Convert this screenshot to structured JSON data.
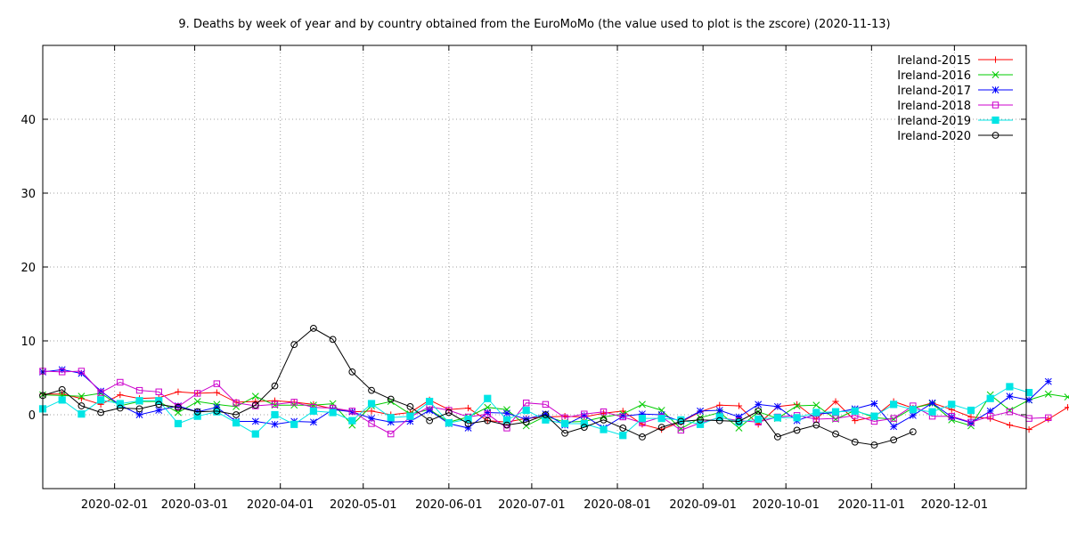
{
  "chart_data": {
    "type": "line",
    "title": "9. Deaths by week of year and by country obtained from the EuroMoMo (the value used to plot is the zscore) (2020-11-13)",
    "xlabel": "",
    "ylabel": "",
    "x_range": [
      "2020-01-06",
      "2020-12-27"
    ],
    "ylim": [
      -10,
      50
    ],
    "grid": true,
    "legend_position": "top-right",
    "x_ticks": [
      "2020-02-01",
      "2020-03-01",
      "2020-04-01",
      "2020-05-01",
      "2020-06-01",
      "2020-07-01",
      "2020-08-01",
      "2020-09-01",
      "2020-10-01",
      "2020-11-01",
      "2020-12-01"
    ],
    "y_ticks": [
      0,
      10,
      20,
      30,
      40
    ],
    "x_start": "2020-01-06",
    "x_step_days": 7,
    "series": [
      {
        "name": "Ireland-2015",
        "color": "#ff0000",
        "marker": "plus",
        "values": [
          2.8,
          2.8,
          2.2,
          1.4,
          2.7,
          2.2,
          2.3,
          3.1,
          2.9,
          3.0,
          1.7,
          1.8,
          1.9,
          1.7,
          1.4,
          0.8,
          0.4,
          0.5,
          0.0,
          0.3,
          2.0,
          0.7,
          0.9,
          -0.8,
          -1.0,
          -0.5,
          -0.3,
          -0.2,
          -0.3,
          0.2,
          0.5,
          -1.3,
          -2.0,
          -1.0,
          0.4,
          1.3,
          1.2,
          -1.3,
          1.1,
          1.4,
          -0.6,
          1.8,
          -0.8,
          -0.3,
          1.8,
          0.9,
          1.6,
          0.7,
          -0.3,
          -0.5,
          -1.4,
          -2.0,
          -0.6,
          1.0,
          0.6,
          0.7,
          1.6
        ]
      },
      {
        "name": "Ireland-2016",
        "color": "#00cc00",
        "marker": "x",
        "values": [
          2.7,
          2.6,
          2.5,
          2.9,
          1.2,
          1.8,
          1.8,
          0.3,
          1.8,
          1.4,
          1.1,
          2.5,
          1.3,
          1.3,
          1.3,
          1.5,
          -1.4,
          1.2,
          1.8,
          0.1,
          0.7,
          -1.0,
          -0.3,
          1.0,
          0.7,
          -1.5,
          -0.2,
          -1.0,
          -0.9,
          -0.3,
          0.1,
          1.4,
          0.6,
          -1.9,
          -0.4,
          0.3,
          -1.8,
          0.4,
          -0.5,
          1.2,
          1.3,
          -0.6,
          0.6,
          -0.4,
          -0.6,
          0.9,
          1.5,
          -0.7,
          -1.5,
          2.7,
          0.6,
          2.0,
          2.8,
          2.4,
          2.0,
          4.6
        ]
      },
      {
        "name": "Ireland-2017",
        "color": "#0000ff",
        "marker": "star",
        "values": [
          5.8,
          6.1,
          5.6,
          3.2,
          1.3,
          0.0,
          0.6,
          1.2,
          0.4,
          1.0,
          -0.9,
          -0.9,
          -1.3,
          -0.9,
          -1.0,
          0.7,
          0.4,
          -0.5,
          -1.0,
          -0.9,
          0.6,
          -1.2,
          -1.8,
          0.3,
          0.2,
          -0.6,
          0.1,
          -1.4,
          -0.1,
          -1.8,
          -0.2,
          0.1,
          0.0,
          -0.9,
          0.5,
          0.6,
          -0.3,
          1.4,
          1.1,
          -0.8,
          0.1,
          0.3,
          0.8,
          1.5,
          -1.6,
          -0.1,
          1.6,
          -0.3,
          -1.1,
          0.5,
          2.5,
          2.0,
          4.5
        ]
      },
      {
        "name": "Ireland-2018",
        "color": "#cc00cc",
        "marker": "square",
        "values": [
          5.9,
          5.8,
          5.9,
          3.0,
          4.4,
          3.3,
          3.1,
          1.1,
          2.9,
          4.2,
          1.6,
          1.2,
          1.4,
          1.7,
          1.0,
          0.9,
          0.5,
          -1.2,
          -2.6,
          -0.3,
          1.1,
          0.6,
          -0.3,
          0.1,
          -1.8,
          1.6,
          1.4,
          -0.4,
          0.1,
          0.4,
          -0.3,
          -1.1,
          -0.3,
          -2.1,
          -1.1,
          -0.4,
          -0.8,
          -1.0,
          -0.3,
          -0.1,
          -0.6,
          -0.5,
          -0.1,
          -0.9,
          -0.5,
          1.2,
          -0.2,
          -0.2,
          -1.0,
          -0.2,
          0.4,
          -0.5,
          -0.4
        ]
      },
      {
        "name": "Ireland-2019",
        "color": "#00e5e5",
        "marker": "filled-square",
        "values": [
          0.8,
          2.0,
          0.1,
          2.0,
          1.5,
          1.9,
          1.9,
          -1.2,
          -0.2,
          0.4,
          -1.1,
          -2.6,
          0.0,
          -1.3,
          0.5,
          0.3,
          -0.8,
          1.5,
          -0.4,
          -0.2,
          1.8,
          -1.1,
          -0.6,
          2.2,
          -0.7,
          0.6,
          -0.7,
          -1.2,
          -1.2,
          -2.0,
          -2.8,
          -0.5,
          -0.5,
          -0.7,
          -1.3,
          -0.3,
          -1.0,
          -0.6,
          -0.4,
          -0.4,
          0.3,
          0.4,
          0.5,
          -0.2,
          1.4,
          0.7,
          0.4,
          1.4,
          0.6,
          2.2,
          3.8,
          3.0
        ]
      },
      {
        "name": "Ireland-2020",
        "color": "#000000",
        "marker": "circle",
        "values": [
          2.6,
          3.4,
          1.2,
          0.3,
          0.9,
          0.8,
          1.4,
          1.0,
          0.4,
          0.5,
          0.0,
          1.3,
          3.9,
          9.5,
          11.7,
          10.2,
          5.8,
          3.3,
          2.1,
          1.1,
          -0.8,
          0.3,
          -1.2,
          -0.8,
          -1.4,
          -1.0,
          0.0,
          -2.5,
          -1.7,
          -0.7,
          -1.8,
          -3.0,
          -1.7,
          -0.9,
          -0.7,
          -0.8,
          -0.9,
          0.5,
          -3.0,
          -2.1,
          -1.4,
          -2.6,
          -3.7,
          -4.1,
          -3.4,
          -2.3
        ]
      }
    ]
  }
}
